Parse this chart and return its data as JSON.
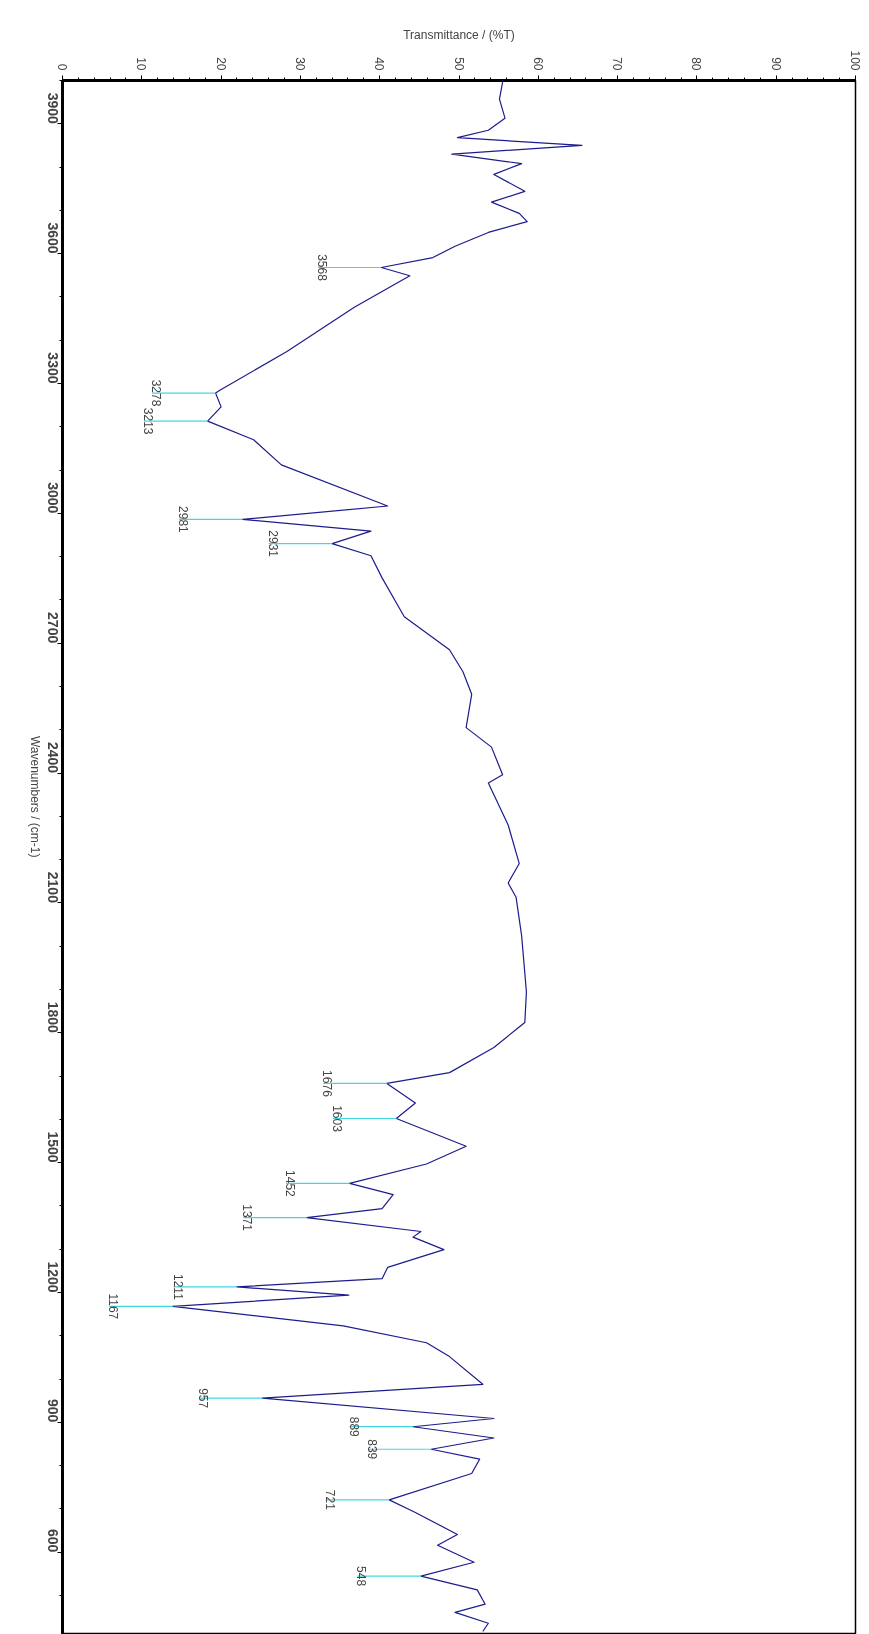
{
  "chart_data": {
    "type": "line",
    "orientation": "horizontal",
    "xlabel": "Transmittance / (%T)",
    "ylabel": "Wavenumbers / (cm-1)",
    "xlim": [
      0,
      100
    ],
    "xticks": [
      0,
      10,
      20,
      30,
      40,
      50,
      60,
      70,
      80,
      90,
      100
    ],
    "ylim": [
      410,
      4000
    ],
    "yticks": [
      3900,
      3600,
      3300,
      3000,
      2700,
      2400,
      2100,
      1800,
      1500,
      1200,
      900,
      600
    ],
    "grid": false,
    "series": [
      {
        "color": "#1c1c8c",
        "x": [
          3996,
          3957,
          3913,
          3885,
          3868,
          3850,
          3830,
          3808,
          3783,
          3744,
          3719,
          3693,
          3674,
          3649,
          3617,
          3591,
          3568,
          3549,
          3476,
          3374,
          3285,
          3278,
          3246,
          3213,
          3170,
          3112,
          3017,
          2986,
          2959,
          2930,
          2902,
          2851,
          2761,
          2685,
          2634,
          2582,
          2505,
          2460,
          2396,
          2377,
          2280,
          2191,
          2146,
          2113,
          2024,
          1895,
          1824,
          1766,
          1708,
          1683,
          1638,
          1602,
          1538,
          1497,
          1452,
          1426,
          1394,
          1373,
          1341,
          1328,
          1299,
          1258,
          1232,
          1213,
          1194,
          1168,
          1123,
          1084,
          1052,
          988,
          956,
          909,
          890,
          864,
          838,
          815,
          782,
          721,
          692,
          641,
          616,
          577,
          545,
          513,
          480,
          461,
          436,
          417
        ],
        "values": [
          55.5,
          55.1,
          55.8,
          53.7,
          49.8,
          65.5,
          49.1,
          57.9,
          54.4,
          58.3,
          54.1,
          57.6,
          58.6,
          53.7,
          49.5,
          46.7,
          40.2,
          43.8,
          36.8,
          28.3,
          19.9,
          19.3,
          20.0,
          18.3,
          24.1,
          27.6,
          41.0,
          22.7,
          38.9,
          34.0,
          38.9,
          40.3,
          43.1,
          48.8,
          50.5,
          51.6,
          50.9,
          54.1,
          55.5,
          53.7,
          56.2,
          57.6,
          56.2,
          57.2,
          57.9,
          58.5,
          58.3,
          54.4,
          48.8,
          40.9,
          44.5,
          42.1,
          50.9,
          45.9,
          36.2,
          41.7,
          40.3,
          30.8,
          45.2,
          44.2,
          48.1,
          41.0,
          40.3,
          22.0,
          36.1,
          13.9,
          35.4,
          45.9,
          48.8,
          53.0,
          25.2,
          54.4,
          44.2,
          54.4,
          46.5,
          52.6,
          51.6,
          41.2,
          44.5,
          49.8,
          47.3,
          51.9,
          45.2,
          52.3,
          53.3,
          49.5,
          53.7,
          53.0
        ]
      }
    ],
    "annotations": [
      {
        "text": "3568",
        "y": 3568,
        "x": 40.2
      },
      {
        "text": "3278",
        "y": 3278,
        "x": 19.3
      },
      {
        "text": "3213",
        "y": 3213,
        "x": 18.3
      },
      {
        "text": "2981",
        "y": 2986,
        "x": 22.7
      },
      {
        "text": "2931",
        "y": 2930,
        "x": 34.0
      },
      {
        "text": "1676",
        "y": 1683,
        "x": 40.9
      },
      {
        "text": "1603",
        "y": 1602,
        "x": 42.1
      },
      {
        "text": "1452",
        "y": 1452,
        "x": 36.2
      },
      {
        "text": "1371",
        "y": 1373,
        "x": 30.8
      },
      {
        "text": "1211",
        "y": 1213,
        "x": 22.0
      },
      {
        "text": "1167",
        "y": 1168,
        "x": 13.9
      },
      {
        "text": "957",
        "y": 956,
        "x": 25.2
      },
      {
        "text": "889",
        "y": 890,
        "x": 44.2
      },
      {
        "text": "839",
        "y": 838,
        "x": 46.5
      },
      {
        "text": "721",
        "y": 721,
        "x": 41.2
      },
      {
        "text": "548",
        "y": 545,
        "x": 45.2
      }
    ]
  }
}
